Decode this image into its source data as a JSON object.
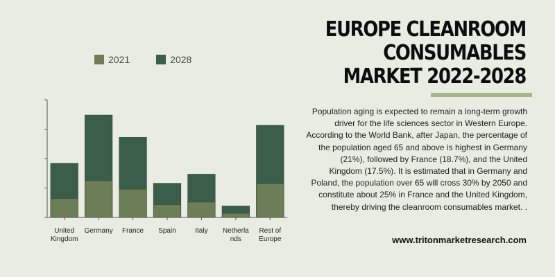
{
  "header": {
    "title_line1": "EUROPE CLEANROOM CONSUMABLES",
    "title_line2": "MARKET 2022-2028"
  },
  "legend": [
    {
      "label": "2021",
      "color": "#6b7e57"
    },
    {
      "label": "2028",
      "color": "#3b5e4a"
    }
  ],
  "accent_color": "#a4b788",
  "description": "Population aging is expected to remain a long-term growth driver for the life sciences sector in Western Europe. According to the World Bank, after Japan, the percentage of the population aged 65 and above is highest in Germany (21%), followed by France (18.7%), and the United Kingdom (17.5%). It is estimated that in Germany and Poland, the population over 65 will cross 30% by 2050 and constitute about 25% in France and the United Kingdom, thereby driving the cleanroom consumables market.\n.",
  "website": "www.tritonmarketresearch.com",
  "chart_data": {
    "type": "bar",
    "categories": [
      [
        "United",
        "Kingdom"
      ],
      [
        "Germany"
      ],
      [
        "France"
      ],
      [
        "Spain"
      ],
      [
        "Italy"
      ],
      [
        "Netherla",
        "nds"
      ],
      [
        "Rest of",
        "Europe"
      ]
    ],
    "series": [
      {
        "name": "2021",
        "values": [
          0.64,
          1.25,
          0.96,
          0.43,
          0.52,
          0.14,
          1.15
        ],
        "color": "#6b7e57"
      },
      {
        "name": "2028",
        "values": [
          1.84,
          3.48,
          2.72,
          1.16,
          1.47,
          0.39,
          3.13
        ],
        "color": "#3b5e4a"
      }
    ],
    "ylim": [
      0,
      4
    ],
    "yticks": [
      0,
      1,
      2,
      3,
      4
    ],
    "ytick_labels_shown": false,
    "xlabel": "",
    "ylabel": "",
    "grid": false,
    "legend_position": "top-left"
  }
}
